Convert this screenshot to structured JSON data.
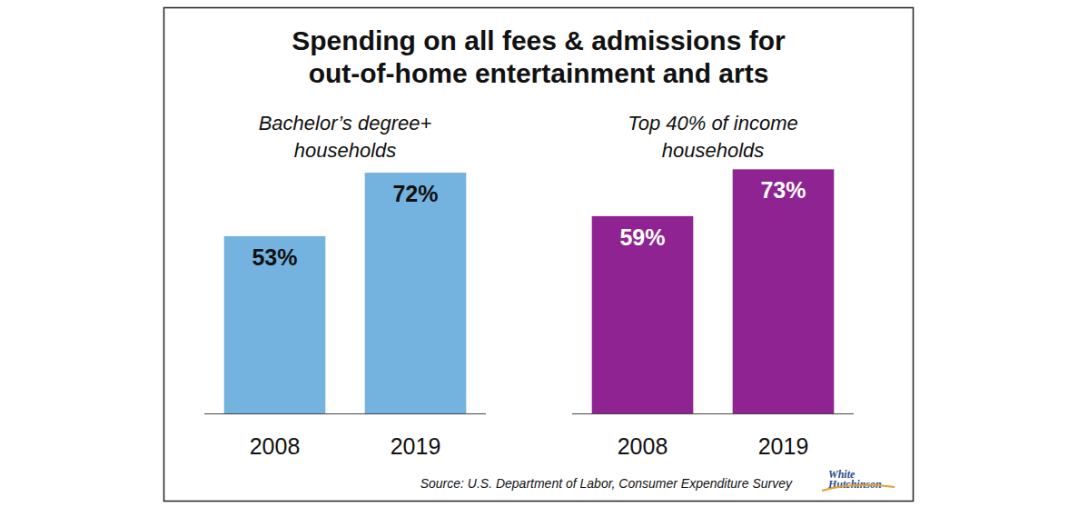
{
  "header": {
    "title": "Spending on all fees & admissions for out-of-home entertainment and arts"
  },
  "chart_data": [
    {
      "type": "bar",
      "title": "Bachelor’s degree+ households",
      "categories": [
        "2008",
        "2019"
      ],
      "values": [
        53,
        72
      ],
      "value_labels": [
        "53%",
        "72%"
      ],
      "color": "#74b3e0",
      "ylim": [
        0,
        100
      ],
      "data_labels": true,
      "tick_labels": "x"
    },
    {
      "type": "bar",
      "title": "Top 40% of income households",
      "categories": [
        "2008",
        "2019"
      ],
      "values": [
        59,
        73
      ],
      "value_labels": [
        "59%",
        "73%"
      ],
      "color": "#8e2391",
      "ylim": [
        0,
        100
      ],
      "data_labels": true,
      "tick_labels": "x"
    }
  ],
  "footer": {
    "source": "Source: U.S. Department of Labor, Consumer Expenditure Survey",
    "logo": "White Hutchinson"
  }
}
